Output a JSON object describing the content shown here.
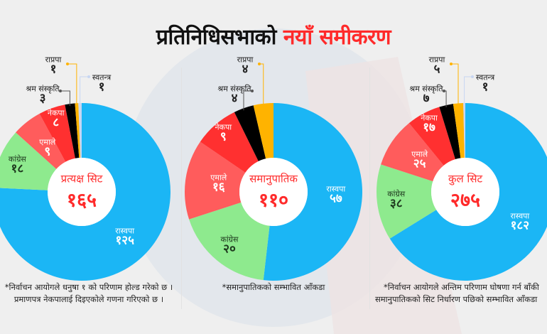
{
  "title": {
    "part1": "प्रतिनिधिसभाको",
    "part2": "नयाँ समीकरण"
  },
  "colors": {
    "रास्वपा": "#1bb6f5",
    "कांग्रेस": "#8eea8e",
    "एमाले": "#ff5c5c",
    "नेकपा": "#ff3030",
    "श्रम संस्कृति": "#000000",
    "राप्रपा": "#ffb300",
    "स्वतन्त्र": "#c7d6f2",
    "title_accent": "#ff2a2a"
  },
  "chart_data": [
    {
      "type": "pie",
      "donut": true,
      "title": "प्रत्यक्ष सिट",
      "total": "१६५",
      "categories": [
        "रास्वपा",
        "कांग्रेस",
        "एमाले",
        "नेकपा",
        "श्रम संस्कृति",
        "राप्रपा",
        "स्वतन्त्र"
      ],
      "values": [
        125,
        18,
        9,
        8,
        3,
        1,
        1
      ],
      "value_labels": [
        "१२५",
        "१८",
        "९",
        "८",
        "३",
        "१",
        "१"
      ]
    },
    {
      "type": "pie",
      "donut": true,
      "title": "समानुपातिक",
      "total": "११०",
      "categories": [
        "रास्वपा",
        "कांग्रेस",
        "एमाले",
        "नेकपा",
        "श्रम संस्कृति",
        "राप्रपा"
      ],
      "values": [
        57,
        20,
        16,
        9,
        4,
        4
      ],
      "value_labels": [
        "५७",
        "२०",
        "१६",
        "९",
        "४",
        "४"
      ]
    },
    {
      "type": "pie",
      "donut": true,
      "title": "कुल सिट",
      "total": "२७५",
      "categories": [
        "रास्वपा",
        "कांग्रेस",
        "एमाले",
        "नेकपा",
        "श्रम संस्कृति",
        "राप्रपा",
        "स्वतन्त्र"
      ],
      "values": [
        182,
        38,
        25,
        17,
        7,
        5,
        1
      ],
      "value_labels": [
        "१८२",
        "३८",
        "२५",
        "१७",
        "७",
        "५",
        "१"
      ]
    }
  ],
  "notes": [
    [
      "*निर्वाचन आयोगले धनुषा १ को परिणाम होल्ड गरेको छ ।",
      "प्रमाणपत्र नेकपालाई दिइएकोले गणना गरिएको छ ।"
    ],
    [
      "*समानुपातिकको सम्भावित आँकडा"
    ],
    [
      "*निर्वाचन आयोगले अन्तिम परिणाम घोषणा गर्न बाँकी",
      "समानुपातिकको सिट निर्धारण पछिको सम्भावित आँकडा"
    ]
  ]
}
